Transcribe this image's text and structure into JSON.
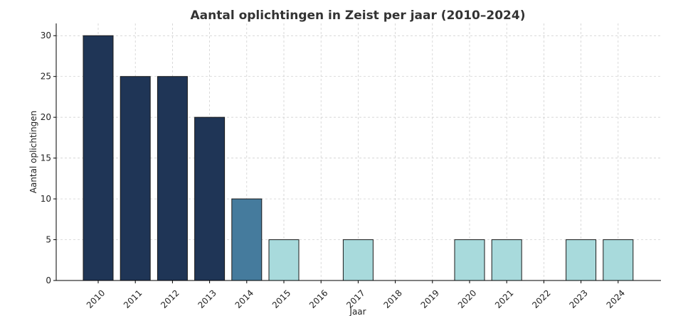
{
  "chart_data": {
    "type": "bar",
    "title": "Aantal oplichtingen in Zeist per jaar (2010–2024)",
    "xlabel": "Jaar",
    "ylabel": "Aantal oplichtingen",
    "categories": [
      "2010",
      "2011",
      "2012",
      "2013",
      "2014",
      "2015",
      "2016",
      "2017",
      "2018",
      "2019",
      "2020",
      "2021",
      "2022",
      "2023",
      "2024"
    ],
    "values": [
      30,
      25,
      25,
      20,
      10,
      5,
      0,
      5,
      0,
      0,
      5,
      5,
      0,
      5,
      5
    ],
    "bar_colors": [
      "#1f3556",
      "#1f3556",
      "#1f3556",
      "#1f3556",
      "#457b9d",
      "#a8dadc",
      "#a8dadc",
      "#a8dadc",
      "#a8dadc",
      "#a8dadc",
      "#a8dadc",
      "#a8dadc",
      "#a8dadc",
      "#a8dadc",
      "#a8dadc"
    ],
    "yticks": [
      0,
      5,
      10,
      15,
      20,
      25,
      30
    ],
    "ylim": [
      0,
      31.5
    ],
    "grid": true,
    "legend": false
  }
}
